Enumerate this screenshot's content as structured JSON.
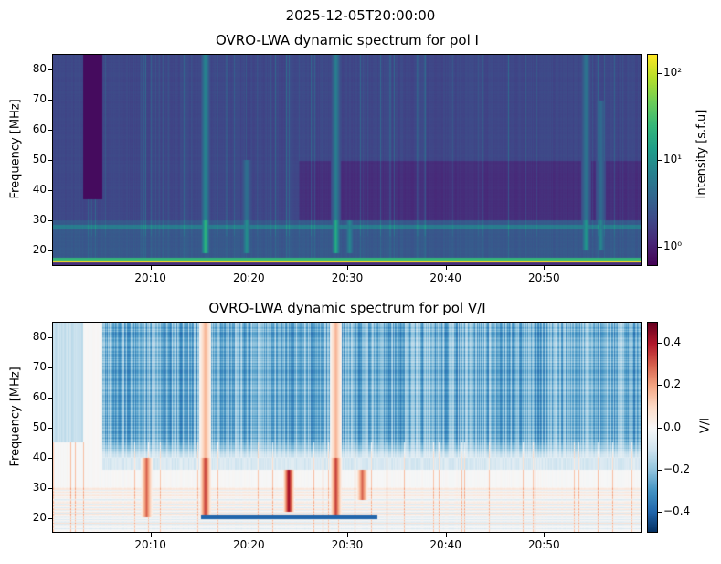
{
  "suptitle": "2025-12-05T20:00:00",
  "chart_data": [
    {
      "type": "heatmap",
      "title": "OVRO-LWA dynamic spectrum for pol I",
      "xlabel": "",
      "ylabel": "Frequency [MHz]",
      "x_unit": "minutes after 20:00",
      "xlim": [
        0,
        60
      ],
      "ylim": [
        15,
        85
      ],
      "xticks": [
        10,
        20,
        30,
        40,
        50
      ],
      "xticklabels": [
        "20:10",
        "20:20",
        "20:30",
        "20:40",
        "20:50"
      ],
      "yticks": [
        20,
        30,
        40,
        50,
        60,
        70,
        80
      ],
      "yticklabels": [
        "20",
        "30",
        "40",
        "50",
        "60",
        "70",
        "80"
      ],
      "colorbar": {
        "label": "Intensity [s.f.u]",
        "scale": "log",
        "range": [
          0.6,
          166
        ],
        "colormap": "viridis",
        "ticks": [
          1,
          10,
          100
        ],
        "ticklabels": [
          "10⁰",
          "10¹",
          "10²"
        ]
      },
      "features": {
        "gap": {
          "t": [
            3,
            5
          ],
          "f": [
            37,
            85
          ]
        },
        "bright_band_mhz": [
          16,
          17.5
        ],
        "rfi_band_mhz": [
          27,
          28.5
        ],
        "bursts": [
          {
            "t": 15.5,
            "f": [
              19,
              85
            ],
            "peak": 25
          },
          {
            "t": 19.7,
            "f": [
              19,
              50
            ],
            "peak": 8
          },
          {
            "t": 28.8,
            "f": [
              19,
              85
            ],
            "peak": 18
          },
          {
            "t": 30.2,
            "f": [
              19,
              30
            ],
            "peak": 6
          },
          {
            "t": 54.3,
            "f": [
              20,
              85
            ],
            "peak": 10
          },
          {
            "t": 55.8,
            "f": [
              20,
              70
            ],
            "peak": 6
          }
        ]
      }
    },
    {
      "type": "heatmap",
      "title": "OVRO-LWA dynamic spectrum for pol V/I",
      "xlabel": "",
      "ylabel": "Frequency [MHz]",
      "x_unit": "minutes after 20:00",
      "xlim": [
        0,
        60
      ],
      "ylim": [
        15,
        85
      ],
      "xticks": [
        10,
        20,
        30,
        40,
        50
      ],
      "xticklabels": [
        "20:10",
        "20:20",
        "20:30",
        "20:40",
        "20:50"
      ],
      "yticks": [
        20,
        30,
        40,
        50,
        60,
        70,
        80
      ],
      "yticklabels": [
        "20",
        "30",
        "40",
        "50",
        "60",
        "70",
        "80"
      ],
      "colorbar": {
        "label": "V/I",
        "scale": "linear",
        "range": [
          -0.5,
          0.5
        ],
        "colormap": "RdBu_r",
        "ticks": [
          0.4,
          0.2,
          0,
          -0.2,
          -0.4
        ],
        "ticklabels": [
          "0.4",
          "0.2",
          "0.0",
          "−0.2",
          "−0.4"
        ]
      },
      "features": {
        "blue_region": {
          "t": [
            5,
            60
          ],
          "f": [
            40,
            85
          ],
          "value": -0.3
        },
        "red_bursts": [
          {
            "t": 9.5,
            "f": [
              20,
              40
            ],
            "value": 0.3
          },
          {
            "t": 15.5,
            "f": [
              20,
              85
            ],
            "value": 0.35
          },
          {
            "t": 24,
            "f": [
              22,
              36
            ],
            "value": 0.45
          },
          {
            "t": 28.8,
            "f": [
              20,
              85
            ],
            "value": 0.35
          },
          {
            "t": 31.5,
            "f": [
              26,
              36
            ],
            "value": 0.3
          }
        ]
      }
    }
  ]
}
